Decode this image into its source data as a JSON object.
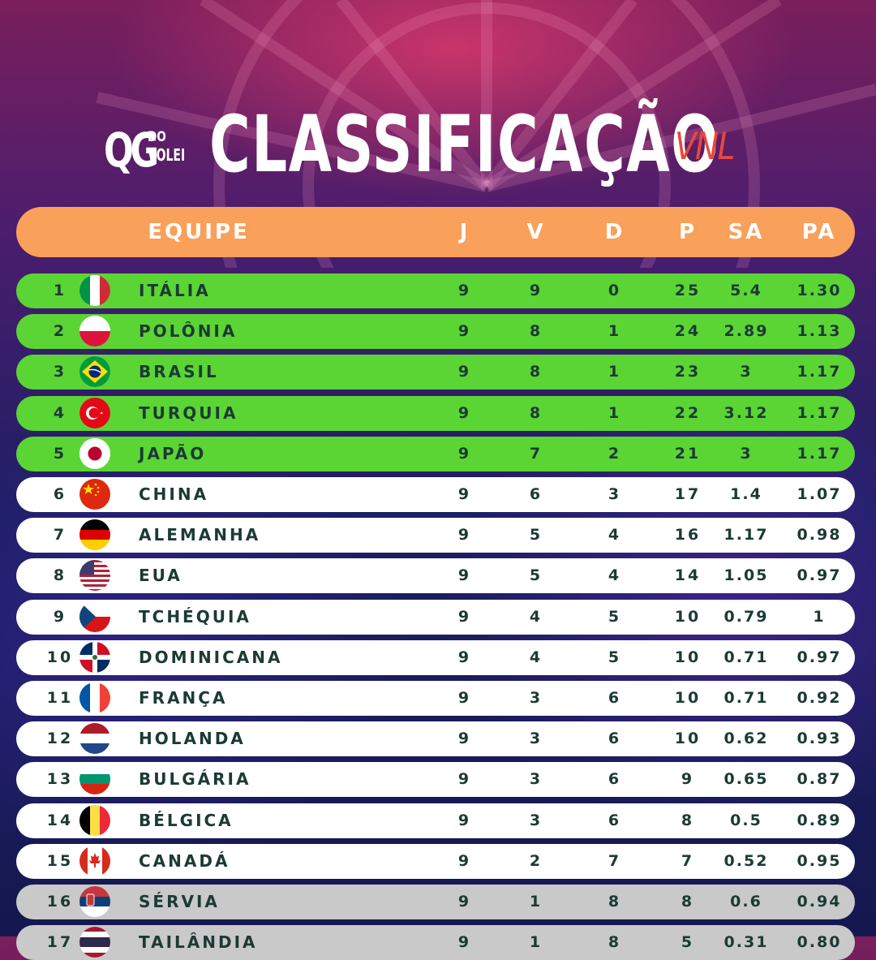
{
  "logo": {
    "qg": "QG",
    "do": "DO",
    "volei": "VOLEI"
  },
  "title": "CLASSIFICAÇÃO",
  "badge": "VNL",
  "header": {
    "team": "EQUIPE",
    "j": "J",
    "v": "V",
    "d": "D",
    "p": "P",
    "sa": "SA",
    "pa": "PA"
  },
  "colors": {
    "header": "#f9a05a",
    "qualified": "#5bd534",
    "neutral": "#ffffff",
    "relegation": "#c9c9c9",
    "text": "#1c3a34"
  },
  "rows": [
    {
      "rank": "1",
      "team": "ITÁLIA",
      "flag": "italy-flag-icon",
      "j": "9",
      "v": "9",
      "d": "0",
      "p": "25",
      "sa": "5.4",
      "pa": "1.30",
      "status": "green"
    },
    {
      "rank": "2",
      "team": "POLÔNIA",
      "flag": "poland-flag-icon",
      "j": "9",
      "v": "8",
      "d": "1",
      "p": "24",
      "sa": "2.89",
      "pa": "1.13",
      "status": "green"
    },
    {
      "rank": "3",
      "team": "BRASIL",
      "flag": "brazil-flag-icon",
      "j": "9",
      "v": "8",
      "d": "1",
      "p": "23",
      "sa": "3",
      "pa": "1.17",
      "status": "green"
    },
    {
      "rank": "4",
      "team": "TURQUIA",
      "flag": "turkey-flag-icon",
      "j": "9",
      "v": "8",
      "d": "1",
      "p": "22",
      "sa": "3.12",
      "pa": "1.17",
      "status": "green"
    },
    {
      "rank": "5",
      "team": "JAPÃO",
      "flag": "japan-flag-icon",
      "j": "9",
      "v": "7",
      "d": "2",
      "p": "21",
      "sa": "3",
      "pa": "1.17",
      "status": "green"
    },
    {
      "rank": "6",
      "team": "CHINA",
      "flag": "china-flag-icon",
      "j": "9",
      "v": "6",
      "d": "3",
      "p": "17",
      "sa": "1.4",
      "pa": "1.07",
      "status": "white"
    },
    {
      "rank": "7",
      "team": "ALEMANHA",
      "flag": "germany-flag-icon",
      "j": "9",
      "v": "5",
      "d": "4",
      "p": "16",
      "sa": "1.17",
      "pa": "0.98",
      "status": "white"
    },
    {
      "rank": "8",
      "team": "EUA",
      "flag": "usa-flag-icon",
      "j": "9",
      "v": "5",
      "d": "4",
      "p": "14",
      "sa": "1.05",
      "pa": "0.97",
      "status": "white"
    },
    {
      "rank": "9",
      "team": "TCHÉQUIA",
      "flag": "czechia-flag-icon",
      "j": "9",
      "v": "4",
      "d": "5",
      "p": "10",
      "sa": "0.79",
      "pa": "1",
      "status": "white"
    },
    {
      "rank": "10",
      "team": "DOMINICANA",
      "flag": "dominican-republic-flag-icon",
      "j": "9",
      "v": "4",
      "d": "5",
      "p": "10",
      "sa": "0.71",
      "pa": "0.97",
      "status": "white"
    },
    {
      "rank": "11",
      "team": "FRANÇA",
      "flag": "france-flag-icon",
      "j": "9",
      "v": "3",
      "d": "6",
      "p": "10",
      "sa": "0.71",
      "pa": "0.92",
      "status": "white"
    },
    {
      "rank": "12",
      "team": "HOLANDA",
      "flag": "netherlands-flag-icon",
      "j": "9",
      "v": "3",
      "d": "6",
      "p": "10",
      "sa": "0.62",
      "pa": "0.93",
      "status": "white"
    },
    {
      "rank": "13",
      "team": "BULGÁRIA",
      "flag": "bulgaria-flag-icon",
      "j": "9",
      "v": "3",
      "d": "6",
      "p": "9",
      "sa": "0.65",
      "pa": "0.87",
      "status": "white"
    },
    {
      "rank": "14",
      "team": "BÉLGICA",
      "flag": "belgium-flag-icon",
      "j": "9",
      "v": "3",
      "d": "6",
      "p": "8",
      "sa": "0.5",
      "pa": "0.89",
      "status": "white"
    },
    {
      "rank": "15",
      "team": "CANADÁ",
      "flag": "canada-flag-icon",
      "j": "9",
      "v": "2",
      "d": "7",
      "p": "7",
      "sa": "0.52",
      "pa": "0.95",
      "status": "white"
    },
    {
      "rank": "16",
      "team": "SÉRVIA",
      "flag": "serbia-flag-icon",
      "j": "9",
      "v": "1",
      "d": "8",
      "p": "8",
      "sa": "0.6",
      "pa": "0.94",
      "status": "gray"
    },
    {
      "rank": "17",
      "team": "TAILÂNDIA",
      "flag": "thailand-flag-icon",
      "j": "9",
      "v": "1",
      "d": "8",
      "p": "5",
      "sa": "0.31",
      "pa": "0.80",
      "status": "gray"
    }
  ]
}
